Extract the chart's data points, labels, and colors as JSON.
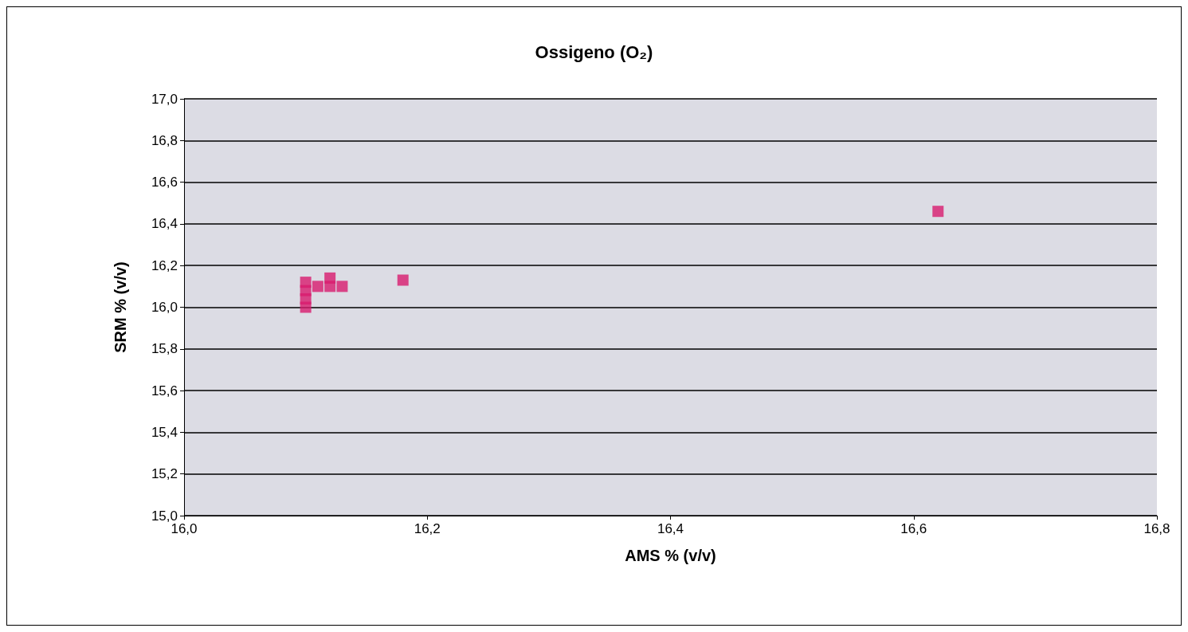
{
  "chart_data": {
    "type": "scatter",
    "title": "Ossigeno (O₂)",
    "xlabel": "AMS % (v/v)",
    "ylabel": "SRM % (v/v)",
    "x": [
      16.1,
      16.1,
      16.1,
      16.1,
      16.11,
      16.12,
      16.13,
      16.12,
      16.18,
      16.62
    ],
    "values": [
      16.0,
      16.04,
      16.08,
      16.12,
      16.1,
      16.1,
      16.1,
      16.14,
      16.13,
      16.46
    ],
    "color": "#d81b6e",
    "marker": "square",
    "xlim": [
      16.0,
      16.8
    ],
    "xticks": [
      {
        "value": 16.0,
        "label": "16,0"
      },
      {
        "value": 16.2,
        "label": "16,2"
      },
      {
        "value": 16.4,
        "label": "16,4"
      },
      {
        "value": 16.6,
        "label": "16,6"
      },
      {
        "value": 16.8,
        "label": "16,8"
      }
    ],
    "ylim": [
      15.0,
      17.0
    ],
    "yticks": [
      {
        "value": 15.0,
        "label": "15,0"
      },
      {
        "value": 15.2,
        "label": "15,2"
      },
      {
        "value": 15.4,
        "label": "15,4"
      },
      {
        "value": 15.6,
        "label": "15,6"
      },
      {
        "value": 15.8,
        "label": "15,8"
      },
      {
        "value": 16.0,
        "label": "16,0"
      },
      {
        "value": 16.2,
        "label": "16,2"
      },
      {
        "value": 16.4,
        "label": "16,4"
      },
      {
        "value": 16.6,
        "label": "16,6"
      },
      {
        "value": 16.8,
        "label": "16,8"
      },
      {
        "value": 17.0,
        "label": "17,0"
      }
    ],
    "grid": "y"
  }
}
